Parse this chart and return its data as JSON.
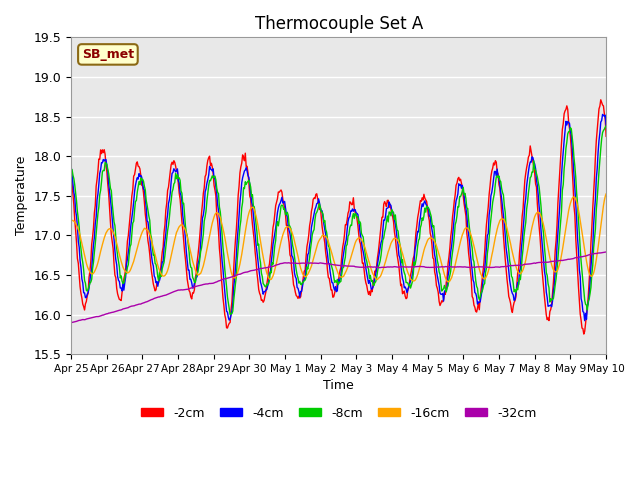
{
  "title": "Thermocouple Set A",
  "xlabel": "Time",
  "ylabel": "Temperature",
  "ylim": [
    15.5,
    19.5
  ],
  "annotation": "SB_met",
  "bg_color": "#e8e8e8",
  "fig_width": 6.4,
  "fig_height": 4.8,
  "dpi": 100,
  "series": [
    {
      "label": "-2cm",
      "color": "#ff0000"
    },
    {
      "label": "-4cm",
      "color": "#0000ff"
    },
    {
      "label": "-8cm",
      "color": "#00cc00"
    },
    {
      "label": "-16cm",
      "color": "#ffa500"
    },
    {
      "label": "-32cm",
      "color": "#aa00aa"
    }
  ],
  "xtick_labels": [
    "Apr 25",
    "Apr 26",
    "Apr 27",
    "Apr 28",
    "Apr 29",
    "Apr 30",
    "May 1",
    "May 2",
    "May 3",
    "May 4",
    "May 5",
    "May 6",
    "May 7",
    "May 8",
    "May 9",
    "May 10"
  ],
  "duration_days": 15,
  "n_points": 600
}
